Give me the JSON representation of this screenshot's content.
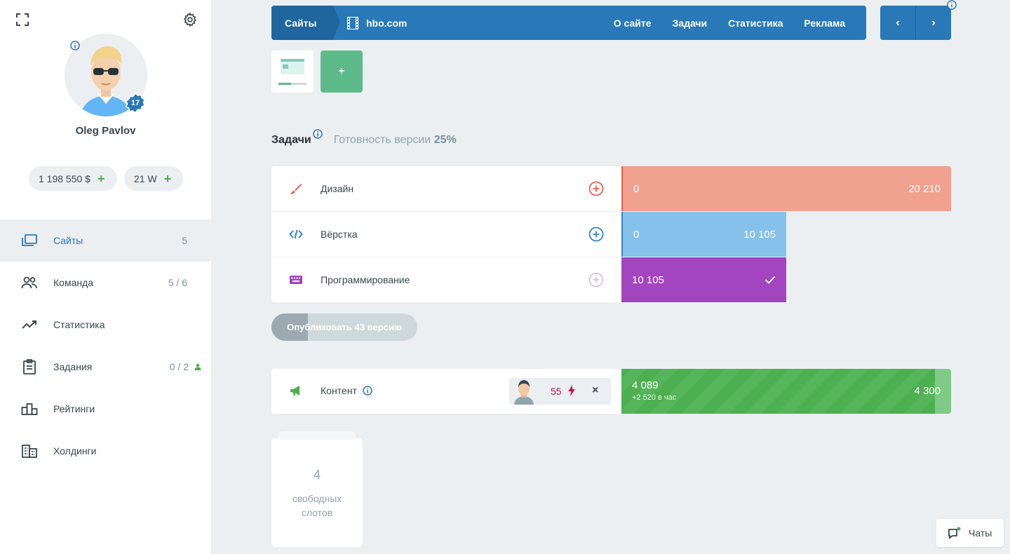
{
  "sidebar": {
    "user_name": "Oleg Pavlov",
    "level": "17",
    "money": "1 198 550 $",
    "workforce": "21 W",
    "plus": "+",
    "nav": [
      {
        "label": "Сайты",
        "count": "5",
        "icon": "browser-windows-icon",
        "active": true
      },
      {
        "label": "Команда",
        "count": "5 / 6",
        "icon": "team-icon"
      },
      {
        "label": "Статистика",
        "count": "",
        "icon": "trend-icon"
      },
      {
        "label": "Задания",
        "count": "0 / 2",
        "icon": "clipboard-icon"
      },
      {
        "label": "Рейтинги",
        "count": "",
        "icon": "podium-icon"
      },
      {
        "label": "Холдинги",
        "count": "",
        "icon": "buildings-icon"
      }
    ]
  },
  "topbar": {
    "breadcrumb_root": "Сайты",
    "site_name": "hbo.com",
    "tabs": [
      "О сайте",
      "Задачи",
      "Статистика",
      "Реклама"
    ],
    "prev": "‹",
    "next": "›"
  },
  "add_label": "+",
  "tasks": {
    "title": "Задачи",
    "readiness_label": "Готовность версии",
    "readiness_value": "25%",
    "rows": [
      {
        "label": "Дизайн",
        "current": "0",
        "total": "20 210",
        "color": "#F0A18F"
      },
      {
        "label": "Вёрстка",
        "current": "0",
        "total": "10 105",
        "color": "#85C1EA"
      },
      {
        "label": "Программирование",
        "current": "10 105",
        "total": "",
        "done": true,
        "color": "#A245BE"
      }
    ],
    "publish_label": "Опубликовать 43 версию",
    "publish_progress": 0.25
  },
  "content": {
    "label": "Контент",
    "worker_energy": "55",
    "close": "×",
    "current": "4 089",
    "rate": "+2 520 в час",
    "max": "4 300",
    "fill_fraction": 0.95
  },
  "slots": {
    "count": "4",
    "text_line1": "свободных",
    "text_line2": "слотов"
  },
  "chats_label": "Чаты"
}
